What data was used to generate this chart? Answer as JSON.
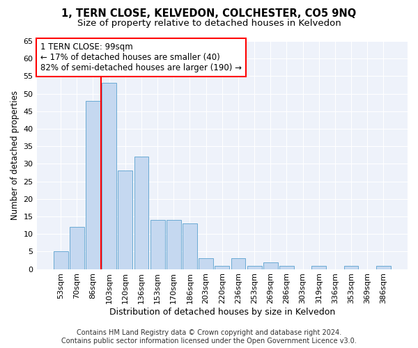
{
  "title": "1, TERN CLOSE, KELVEDON, COLCHESTER, CO5 9NQ",
  "subtitle": "Size of property relative to detached houses in Kelvedon",
  "xlabel": "Distribution of detached houses by size in Kelvedon",
  "ylabel": "Number of detached properties",
  "categories": [
    "53sqm",
    "70sqm",
    "86sqm",
    "103sqm",
    "120sqm",
    "136sqm",
    "153sqm",
    "170sqm",
    "186sqm",
    "203sqm",
    "220sqm",
    "236sqm",
    "253sqm",
    "269sqm",
    "286sqm",
    "303sqm",
    "319sqm",
    "336sqm",
    "353sqm",
    "369sqm",
    "386sqm"
  ],
  "values": [
    5,
    12,
    48,
    53,
    28,
    32,
    14,
    14,
    13,
    3,
    1,
    3,
    1,
    2,
    1,
    0,
    1,
    0,
    1,
    0,
    1
  ],
  "bar_color": "#c5d8f0",
  "bar_edge_color": "#6aaad4",
  "vline_pos": 2.5,
  "vline_color": "red",
  "annotation_line1": "1 TERN CLOSE: 99sqm",
  "annotation_line2": "← 17% of detached houses are smaller (40)",
  "annotation_line3": "82% of semi-detached houses are larger (190) →",
  "annotation_box_color": "white",
  "annotation_box_edge": "red",
  "ylim": [
    0,
    65
  ],
  "yticks": [
    0,
    5,
    10,
    15,
    20,
    25,
    30,
    35,
    40,
    45,
    50,
    55,
    60,
    65
  ],
  "background_color": "#eef2fa",
  "grid_color": "white",
  "footer_line1": "Contains HM Land Registry data © Crown copyright and database right 2024.",
  "footer_line2": "Contains public sector information licensed under the Open Government Licence v3.0.",
  "title_fontsize": 10.5,
  "subtitle_fontsize": 9.5,
  "xlabel_fontsize": 9,
  "ylabel_fontsize": 8.5,
  "tick_fontsize": 8,
  "annotation_fontsize": 8.5,
  "footer_fontsize": 7
}
